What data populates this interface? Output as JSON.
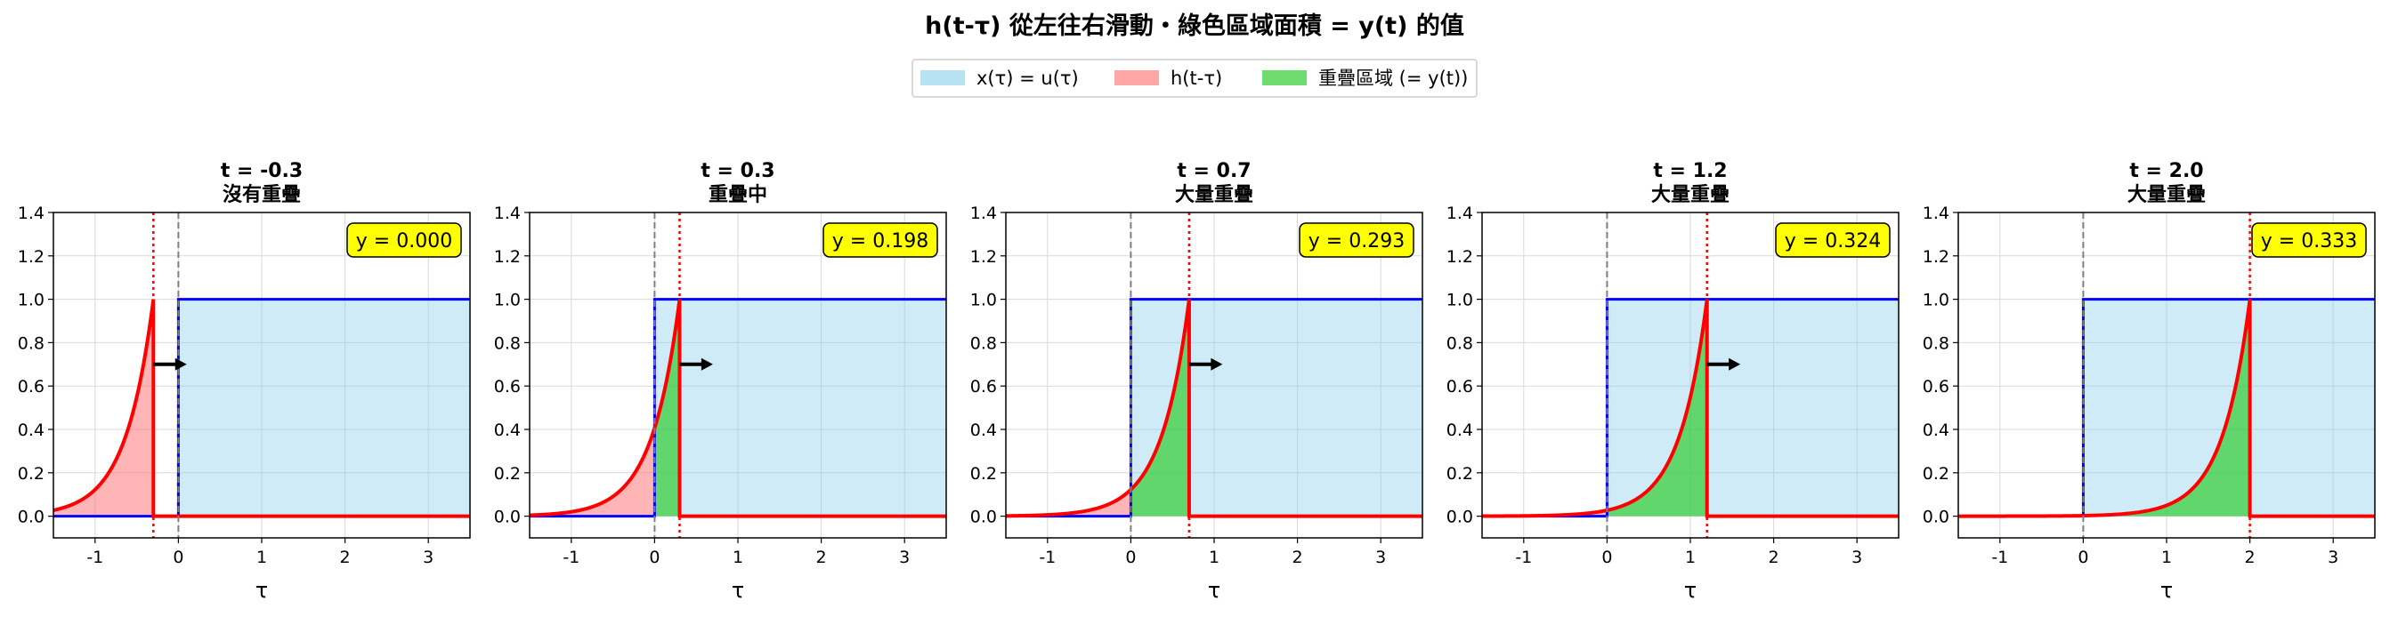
{
  "figure": {
    "title": "h(t-τ) 從左往右滑動・綠色區域面積 = y(t) 的值"
  },
  "legend": {
    "items": [
      {
        "label": "x(τ) = u(τ)",
        "color": "#87CEEB"
      },
      {
        "label": "h(t-τ)",
        "color": "#FF6B6B"
      },
      {
        "label": "重疊區域 (= y(t))",
        "color": "#32CD32"
      }
    ]
  },
  "colors": {
    "x_fill": "#87CEEB",
    "x_line": "#0000FF",
    "h_fill": "#FF6B6B",
    "h_line": "#FF0000",
    "overlap_fill": "#32CD32",
    "t_marker": "#FF0000",
    "zero_marker": "#808080",
    "label_box": "#FFFF00"
  },
  "chart_data": [
    {
      "type": "area",
      "t": -0.3,
      "title": "t = -0.3",
      "subtitle": "沒有重疊",
      "y_label": "y = 0.000",
      "xlabel": "τ",
      "xlim": [
        -1.5,
        3.5
      ],
      "ylim": [
        -0.1,
        1.4
      ],
      "xticks": [
        -1,
        0,
        1,
        2,
        3
      ],
      "yticks": [
        0.0,
        0.2,
        0.4,
        0.6,
        0.8,
        1.0,
        1.2,
        1.4
      ],
      "grid": true,
      "arrow": true
    },
    {
      "type": "area",
      "t": 0.3,
      "title": "t = 0.3",
      "subtitle": "重疊中",
      "y_label": "y = 0.198",
      "xlabel": "τ",
      "xlim": [
        -1.5,
        3.5
      ],
      "ylim": [
        -0.1,
        1.4
      ],
      "xticks": [
        -1,
        0,
        1,
        2,
        3
      ],
      "yticks": [
        0.0,
        0.2,
        0.4,
        0.6,
        0.8,
        1.0,
        1.2,
        1.4
      ],
      "grid": true,
      "arrow": true
    },
    {
      "type": "area",
      "t": 0.7,
      "title": "t = 0.7",
      "subtitle": "大量重疊",
      "y_label": "y = 0.293",
      "xlabel": "τ",
      "xlim": [
        -1.5,
        3.5
      ],
      "ylim": [
        -0.1,
        1.4
      ],
      "xticks": [
        -1,
        0,
        1,
        2,
        3
      ],
      "yticks": [
        0.0,
        0.2,
        0.4,
        0.6,
        0.8,
        1.0,
        1.2,
        1.4
      ],
      "grid": true,
      "arrow": true
    },
    {
      "type": "area",
      "t": 1.2,
      "title": "t = 1.2",
      "subtitle": "大量重疊",
      "y_label": "y = 0.324",
      "xlabel": "τ",
      "xlim": [
        -1.5,
        3.5
      ],
      "ylim": [
        -0.1,
        1.4
      ],
      "xticks": [
        -1,
        0,
        1,
        2,
        3
      ],
      "yticks": [
        0.0,
        0.2,
        0.4,
        0.6,
        0.8,
        1.0,
        1.2,
        1.4
      ],
      "grid": true,
      "arrow": true
    },
    {
      "type": "area",
      "t": 2.0,
      "title": "t = 2.0",
      "subtitle": "大量重疊",
      "y_label": "y = 0.333",
      "xlabel": "τ",
      "xlim": [
        -1.5,
        3.5
      ],
      "ylim": [
        -0.1,
        1.4
      ],
      "xticks": [
        -1,
        0,
        1,
        2,
        3
      ],
      "yticks": [
        0.0,
        0.2,
        0.4,
        0.6,
        0.8,
        1.0,
        1.2,
        1.4
      ],
      "grid": true,
      "arrow": false
    }
  ]
}
